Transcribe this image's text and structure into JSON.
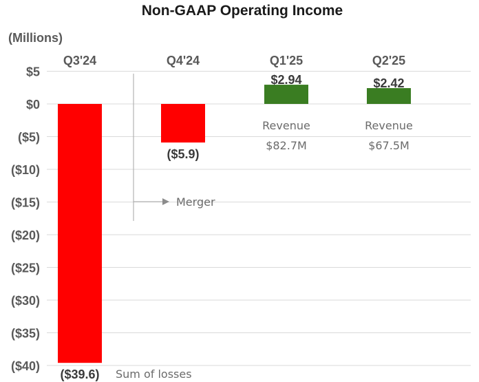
{
  "chart_data": {
    "type": "bar",
    "title": "Non-GAAP Operating Income",
    "units_label": "(Millions)",
    "categories": [
      "Q3'24",
      "Q4'24",
      "Q1'25",
      "Q2'25"
    ],
    "values": [
      -39.6,
      -5.9,
      2.94,
      2.42
    ],
    "data_labels": [
      "($39.6)",
      "($5.9)",
      "$2.94",
      "$2.42"
    ],
    "bar_colors": [
      "#ff0000",
      "#ff0000",
      "#3a7d22",
      "#3a7d22"
    ],
    "ylim": [
      -40,
      5
    ],
    "y_ticks": [
      {
        "value": 5,
        "label": "$5"
      },
      {
        "value": 0,
        "label": "$0"
      },
      {
        "value": -5,
        "label": "($5)"
      },
      {
        "value": -10,
        "label": "($10)"
      },
      {
        "value": -15,
        "label": "($15)"
      },
      {
        "value": -20,
        "label": "($20)"
      },
      {
        "value": -25,
        "label": "($25)"
      },
      {
        "value": -30,
        "label": "($30)"
      },
      {
        "value": -35,
        "label": "($35)"
      },
      {
        "value": -40,
        "label": "($40)"
      }
    ],
    "grid": true,
    "annotations": {
      "merger": "Merger",
      "sum_of_losses": "Sum of losses",
      "revenue_label": "Revenue",
      "revenue_q1": "$82.7M",
      "revenue_q2": "$67.5M"
    }
  }
}
